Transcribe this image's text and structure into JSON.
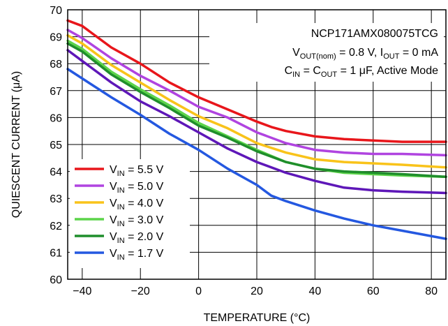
{
  "chart_data": {
    "type": "line",
    "xlabel": "TEMPERATURE (°C)",
    "ylabel": "QUIESCENT CURRENT (μA)",
    "xlim": [
      -45,
      85
    ],
    "ylim": [
      60,
      70
    ],
    "xticks": [
      -40,
      -20,
      0,
      20,
      40,
      60,
      80
    ],
    "xtick_labels": [
      "−40",
      "−20",
      "0",
      "20",
      "40",
      "60",
      "80"
    ],
    "yticks": [
      60,
      61,
      62,
      63,
      64,
      65,
      66,
      67,
      68,
      69,
      70
    ],
    "grid": true,
    "annotation": {
      "line1": "NCP171AMX080075TCG",
      "line2": {
        "a": "V",
        "a_sub": "OUT(nom)",
        "b": " = 0.8 V, I",
        "b_sub": "OUT",
        "c": " = 0 mA"
      },
      "line3": {
        "a": "C",
        "a_sub": "IN",
        "b": " = C",
        "b_sub": "OUT",
        "c": " = 1 μF, Active Mode"
      }
    },
    "legend_position": "bottom-left",
    "series": [
      {
        "name": "5.5 V",
        "label_prefix": "V",
        "label_sub": "IN",
        "label_rest": " = 5.5 V",
        "color": "#e8161b",
        "x": [
          -45,
          -40,
          -30,
          -20,
          -10,
          0,
          10,
          20,
          25,
          30,
          40,
          50,
          60,
          70,
          85
        ],
        "y": [
          69.6,
          69.4,
          68.6,
          68.0,
          67.3,
          66.75,
          66.3,
          65.85,
          65.65,
          65.5,
          65.3,
          65.2,
          65.15,
          65.1,
          65.1
        ]
      },
      {
        "name": "5.0 V",
        "label_prefix": "V",
        "label_sub": "IN",
        "label_rest": " = 5.0 V",
        "color": "#b044e0",
        "x": [
          -45,
          -40,
          -30,
          -20,
          -10,
          0,
          10,
          20,
          30,
          40,
          50,
          60,
          70,
          85
        ],
        "y": [
          69.25,
          68.95,
          68.2,
          67.55,
          67.0,
          66.4,
          66.0,
          65.45,
          65.05,
          64.8,
          64.7,
          64.65,
          64.65,
          64.6
        ]
      },
      {
        "name": "4.0 V",
        "label_prefix": "V",
        "label_sub": "IN",
        "label_rest": " = 4.0 V",
        "color": "#f9c31a",
        "x": [
          -45,
          -40,
          -30,
          -20,
          -10,
          0,
          10,
          20,
          30,
          40,
          50,
          60,
          70,
          85
        ],
        "y": [
          69.05,
          68.75,
          67.95,
          67.3,
          66.65,
          66.05,
          65.6,
          65.05,
          64.7,
          64.45,
          64.35,
          64.3,
          64.25,
          64.15
        ]
      },
      {
        "name": "3.0 V",
        "label_prefix": "V",
        "label_sub": "IN",
        "label_rest": " = 3.0 V",
        "color": "#5cd44a",
        "x": [
          -45,
          -40,
          -30,
          -20,
          -10,
          0,
          10,
          20,
          30,
          40,
          50,
          60,
          70,
          85
        ],
        "y": [
          68.85,
          68.55,
          67.7,
          67.05,
          66.45,
          65.8,
          65.3,
          64.8,
          64.35,
          64.1,
          63.95,
          63.9,
          63.85,
          63.8
        ]
      },
      {
        "name": "2.0 V",
        "label_prefix": "V",
        "label_sub": "IN",
        "label_rest": " = 2.0 V",
        "color": "#1f8e2b",
        "x": [
          -45,
          -40,
          -30,
          -20,
          -10,
          0,
          10,
          20,
          30,
          40,
          50,
          60,
          70,
          85
        ],
        "y": [
          68.75,
          68.45,
          67.6,
          66.95,
          66.35,
          65.7,
          65.25,
          64.75,
          64.35,
          64.1,
          64.0,
          63.95,
          63.9,
          63.8
        ]
      },
      {
        "name": "1.7 V",
        "label_prefix": "V",
        "label_sub": "IN",
        "label_rest": " = 1.7 V",
        "color": "#2458e0",
        "x": [
          -45,
          -40,
          -30,
          -20,
          -10,
          0,
          10,
          20,
          25,
          30,
          40,
          50,
          60,
          70,
          85
        ],
        "y": [
          67.8,
          67.45,
          66.75,
          66.1,
          65.4,
          64.8,
          64.1,
          63.5,
          63.1,
          62.9,
          62.55,
          62.25,
          62.0,
          61.8,
          61.5
        ]
      },
      {
        "name": "",
        "color": "#5e17b8",
        "x": [
          -45,
          -40,
          -30,
          -20,
          -10,
          0,
          10,
          20,
          30,
          40,
          50,
          60,
          70,
          85
        ],
        "y": [
          68.5,
          68.1,
          67.3,
          66.6,
          66.05,
          65.45,
          64.85,
          64.35,
          63.95,
          63.65,
          63.4,
          63.3,
          63.25,
          63.2
        ]
      }
    ]
  }
}
